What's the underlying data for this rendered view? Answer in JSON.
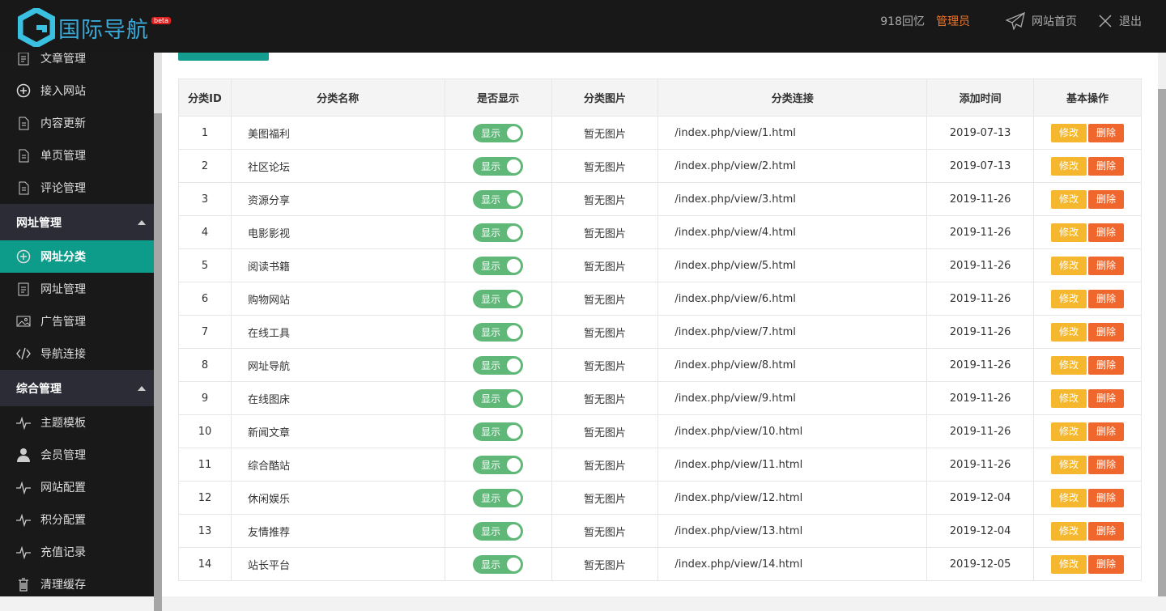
{
  "header": {
    "logo_text": "国际导航",
    "beta": "beta",
    "user": "918回忆",
    "role": "管理员",
    "home": "网站首页",
    "logout": "退出"
  },
  "sidebar": {
    "items_top": [
      {
        "label": "文章管理",
        "icon": "doc"
      },
      {
        "label": "接入网站",
        "icon": "plus"
      },
      {
        "label": "内容更新",
        "icon": "file"
      },
      {
        "label": "单页管理",
        "icon": "file"
      },
      {
        "label": "评论管理",
        "icon": "file"
      }
    ],
    "group1": "网址管理",
    "items1": [
      {
        "label": "网址分类",
        "icon": "plus",
        "active": true
      },
      {
        "label": "网址管理",
        "icon": "doc"
      },
      {
        "label": "广告管理",
        "icon": "image"
      },
      {
        "label": "导航连接",
        "icon": "code"
      }
    ],
    "group2": "综合管理",
    "items2": [
      {
        "label": "主题模板",
        "icon": "pulse"
      },
      {
        "label": "会员管理",
        "icon": "user"
      },
      {
        "label": "网站配置",
        "icon": "pulse"
      },
      {
        "label": "积分配置",
        "icon": "pulse"
      },
      {
        "label": "充值记录",
        "icon": "pulse"
      },
      {
        "label": "清理缓存",
        "icon": "trash"
      }
    ]
  },
  "table": {
    "headers": [
      "分类ID",
      "分类名称",
      "是否显示",
      "分类图片",
      "分类连接",
      "添加时间",
      "基本操作"
    ],
    "switch_label": "显示",
    "no_image": "暂无图片",
    "edit": "修改",
    "delete": "删除",
    "rows": [
      [
        "1",
        "美图福利",
        "/index.php/view/1.html",
        "2019-07-13"
      ],
      [
        "2",
        "社区论坛",
        "/index.php/view/2.html",
        "2019-07-13"
      ],
      [
        "3",
        "资源分享",
        "/index.php/view/3.html",
        "2019-11-26"
      ],
      [
        "4",
        "电影影视",
        "/index.php/view/4.html",
        "2019-11-26"
      ],
      [
        "5",
        "阅读书籍",
        "/index.php/view/5.html",
        "2019-11-26"
      ],
      [
        "6",
        "购物网站",
        "/index.php/view/6.html",
        "2019-11-26"
      ],
      [
        "7",
        "在线工具",
        "/index.php/view/7.html",
        "2019-11-26"
      ],
      [
        "8",
        "网址导航",
        "/index.php/view/8.html",
        "2019-11-26"
      ],
      [
        "9",
        "在线图床",
        "/index.php/view/9.html",
        "2019-11-26"
      ],
      [
        "10",
        "新闻文章",
        "/index.php/view/10.html",
        "2019-11-26"
      ],
      [
        "11",
        "综合酷站",
        "/index.php/view/11.html",
        "2019-11-26"
      ],
      [
        "12",
        "休闲娱乐",
        "/index.php/view/12.html",
        "2019-12-04"
      ],
      [
        "13",
        "友情推荐",
        "/index.php/view/13.html",
        "2019-12-04"
      ],
      [
        "14",
        "站长平台",
        "/index.php/view/14.html",
        "2019-12-05"
      ]
    ]
  },
  "colors": {
    "accent": "#0e9c8a",
    "switch": "#5fb878",
    "edit": "#f5b72d",
    "delete": "#f0672d",
    "role": "#f0772b"
  }
}
